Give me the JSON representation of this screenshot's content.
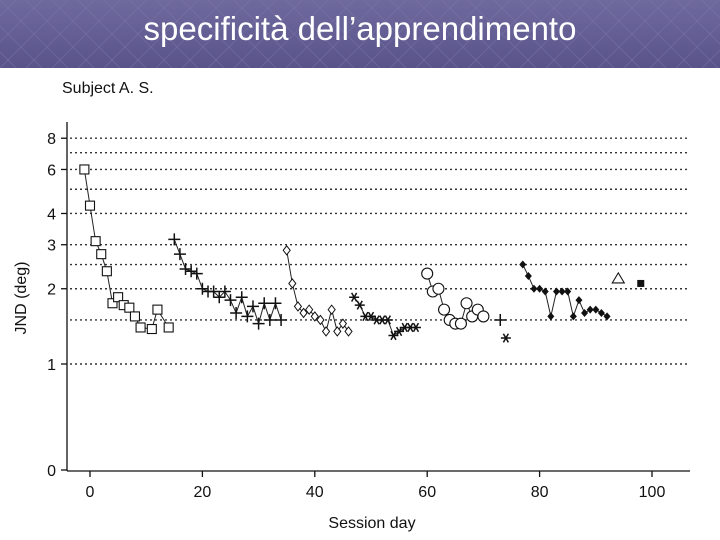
{
  "slide": {
    "title": "specificità dell’apprendimento"
  },
  "chart_data": {
    "type": "scatter",
    "title": "Subject A. S.",
    "xlabel": "Session day",
    "ylabel": "JND (deg)",
    "y_scale": "log",
    "xlim": [
      -4,
      108
    ],
    "x_ticks": [
      0,
      20,
      40,
      60,
      80,
      100
    ],
    "y_ticks": [
      0,
      1,
      2,
      3,
      4,
      6,
      8
    ],
    "grid_y_levels": [
      1,
      1.5,
      2,
      2.5,
      3,
      4,
      5,
      6,
      7,
      8
    ],
    "series": [
      {
        "marker": "square-open",
        "connected": true,
        "points": [
          [
            -1,
            6.0
          ],
          [
            0,
            4.3
          ],
          [
            1,
            3.1
          ],
          [
            2,
            2.75
          ],
          [
            3,
            2.35
          ],
          [
            4,
            1.75
          ],
          [
            5,
            1.85
          ],
          [
            6,
            1.72
          ],
          [
            7,
            1.68
          ],
          [
            8,
            1.55
          ],
          [
            9,
            1.4
          ],
          [
            11,
            1.38
          ],
          [
            12,
            1.65
          ],
          [
            14,
            1.4
          ]
        ]
      },
      {
        "marker": "plus",
        "connected": true,
        "points": [
          [
            15,
            3.15
          ],
          [
            16,
            2.75
          ],
          [
            17,
            2.4
          ],
          [
            18,
            2.35
          ],
          [
            19,
            2.3
          ],
          [
            20,
            2.0
          ],
          [
            21,
            1.95
          ],
          [
            22,
            1.95
          ],
          [
            23,
            1.85
          ],
          [
            24,
            1.95
          ],
          [
            25,
            1.8
          ],
          [
            26,
            1.6
          ],
          [
            27,
            1.85
          ],
          [
            28,
            1.55
          ],
          [
            29,
            1.7
          ],
          [
            30,
            1.45
          ],
          [
            31,
            1.75
          ],
          [
            32,
            1.5
          ],
          [
            33,
            1.75
          ],
          [
            34,
            1.5
          ]
        ]
      },
      {
        "marker": "diamond-open",
        "connected": true,
        "points": [
          [
            35,
            2.85
          ],
          [
            36,
            2.1
          ],
          [
            37,
            1.7
          ],
          [
            38,
            1.6
          ],
          [
            39,
            1.65
          ],
          [
            40,
            1.55
          ],
          [
            41,
            1.5
          ],
          [
            42,
            1.35
          ],
          [
            43,
            1.65
          ],
          [
            44,
            1.35
          ],
          [
            45,
            1.45
          ],
          [
            46,
            1.35
          ]
        ]
      },
      {
        "marker": "asterisk",
        "connected": true,
        "points": [
          [
            47,
            1.85
          ],
          [
            48,
            1.72
          ],
          [
            49,
            1.55
          ],
          [
            50,
            1.55
          ],
          [
            51,
            1.5
          ],
          [
            52,
            1.5
          ],
          [
            53,
            1.5
          ],
          [
            54,
            1.3
          ],
          [
            55,
            1.35
          ],
          [
            56,
            1.4
          ],
          [
            57,
            1.4
          ],
          [
            58,
            1.4
          ]
        ]
      },
      {
        "marker": "circle-open",
        "connected": true,
        "points": [
          [
            60,
            2.3
          ],
          [
            61,
            1.95
          ],
          [
            62,
            2.0
          ],
          [
            63,
            1.65
          ],
          [
            64,
            1.5
          ],
          [
            65,
            1.45
          ],
          [
            66,
            1.45
          ],
          [
            67,
            1.75
          ],
          [
            68,
            1.55
          ],
          [
            69,
            1.65
          ],
          [
            70,
            1.55
          ]
        ]
      },
      {
        "marker": "plus",
        "connected": false,
        "points": [
          [
            73,
            1.5
          ]
        ]
      },
      {
        "marker": "asterisk",
        "connected": false,
        "points": [
          [
            74,
            1.27
          ]
        ]
      },
      {
        "marker": "diamond-filled",
        "connected": true,
        "points": [
          [
            77,
            2.5
          ],
          [
            78,
            2.25
          ],
          [
            79,
            2.0
          ],
          [
            80,
            2.0
          ],
          [
            81,
            1.95
          ],
          [
            82,
            1.55
          ],
          [
            83,
            1.95
          ],
          [
            84,
            1.95
          ],
          [
            85,
            1.95
          ],
          [
            86,
            1.55
          ],
          [
            87,
            1.8
          ],
          [
            88,
            1.6
          ],
          [
            89,
            1.65
          ],
          [
            90,
            1.65
          ],
          [
            91,
            1.6
          ],
          [
            92,
            1.55
          ]
        ]
      },
      {
        "marker": "triangle-open",
        "connected": false,
        "points": [
          [
            94,
            2.2
          ]
        ]
      },
      {
        "marker": "square-filled",
        "connected": false,
        "points": [
          [
            98,
            2.1
          ]
        ]
      }
    ]
  }
}
